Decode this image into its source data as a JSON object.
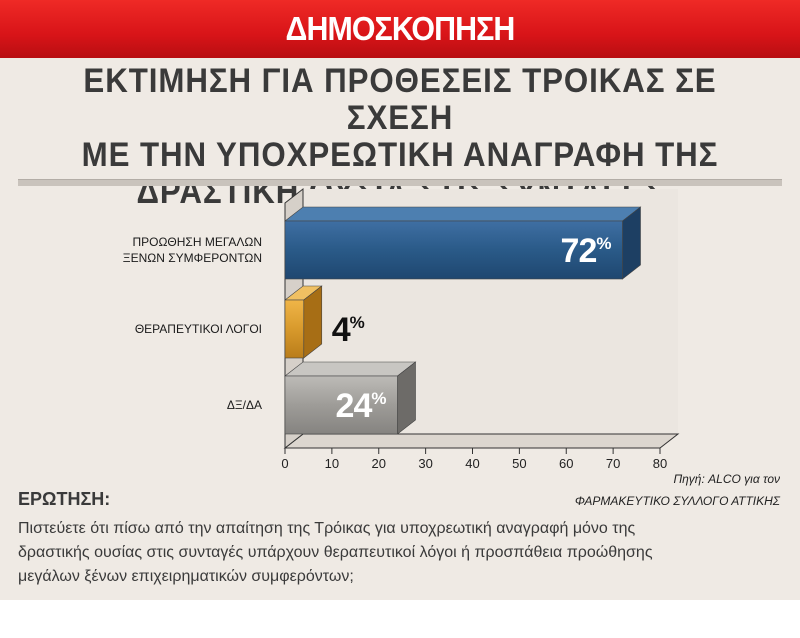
{
  "banner": {
    "title": "ΔΗΜΟΣΚΟΠΗΣΗ"
  },
  "title_lines": [
    "ΕΚΤΙΜΗΣΗ ΓΙΑ ΠΡΟΘΕΣΕΙΣ ΤΡΟΙΚΑΣ ΣΕ ΣΧΕΣΗ",
    "ΜΕ ΤΗΝ ΥΠΟΧΡΕΩΤΙΚΗ ΑΝΑΓΡΑΦΗ ΤΗΣ",
    "ΔΡΑΣΤΙΚΗ ΟΥΣΙΑ ΣΤΙΣ ΣΥΝΤΑΓΕΣ"
  ],
  "source": {
    "line1": "Πηγή: ALCO για τον",
    "line2": "ΦΑΡΜΑΚΕΥΤΙΚΟ ΣΥΛΛΟΓΟ ΑΤΤΙΚΗΣ"
  },
  "question": {
    "label": "ΕΡΩΤΗΣΗ:",
    "lines": [
      "Πιστεύετε ότι πίσω από την απαίτηση της Τρόικας για υποχρεωτική αναγραφή μόνο της",
      "δραστικής ουσίας στις συνταγές υπάρχουν θεραπευτικοί λόγοι  ή προσπάθεια προώθησης",
      "μεγάλων ξένων επιχειρηματικών συμφερόντων;"
    ]
  },
  "chart_data": {
    "type": "bar",
    "orientation": "horizontal",
    "categories": [
      [
        "ΠΡΟΩΘΗΣΗ ΜΕΓΑΛΩΝ",
        "ΞΕΝΩΝ ΣΥΜΦΕΡΟΝΤΩΝ"
      ],
      [
        "ΘΕΡΑΠΕΥΤΙΚΟΙ ΛΟΓΟΙ"
      ],
      [
        "ΔΞ/ΔΑ"
      ]
    ],
    "values": [
      72,
      4,
      24
    ],
    "value_labels": [
      "72",
      "4",
      "24"
    ],
    "unit_symbol": "%",
    "xlim": [
      0,
      80
    ],
    "xticks": [
      0,
      10,
      20,
      30,
      40,
      50,
      60,
      70,
      80
    ],
    "colors": {
      "bars": [
        "#2a5a88",
        "#d89a2c",
        "#9e9c98"
      ],
      "bar_tops": [
        "#4d7fb0",
        "#f0c062",
        "#c8c6c2"
      ],
      "bar_sides": [
        "#1d3f63",
        "#a76e15",
        "#6d6b68"
      ],
      "value_label_colors": [
        "#ffffff",
        "#111111",
        "#ffffff"
      ]
    }
  }
}
